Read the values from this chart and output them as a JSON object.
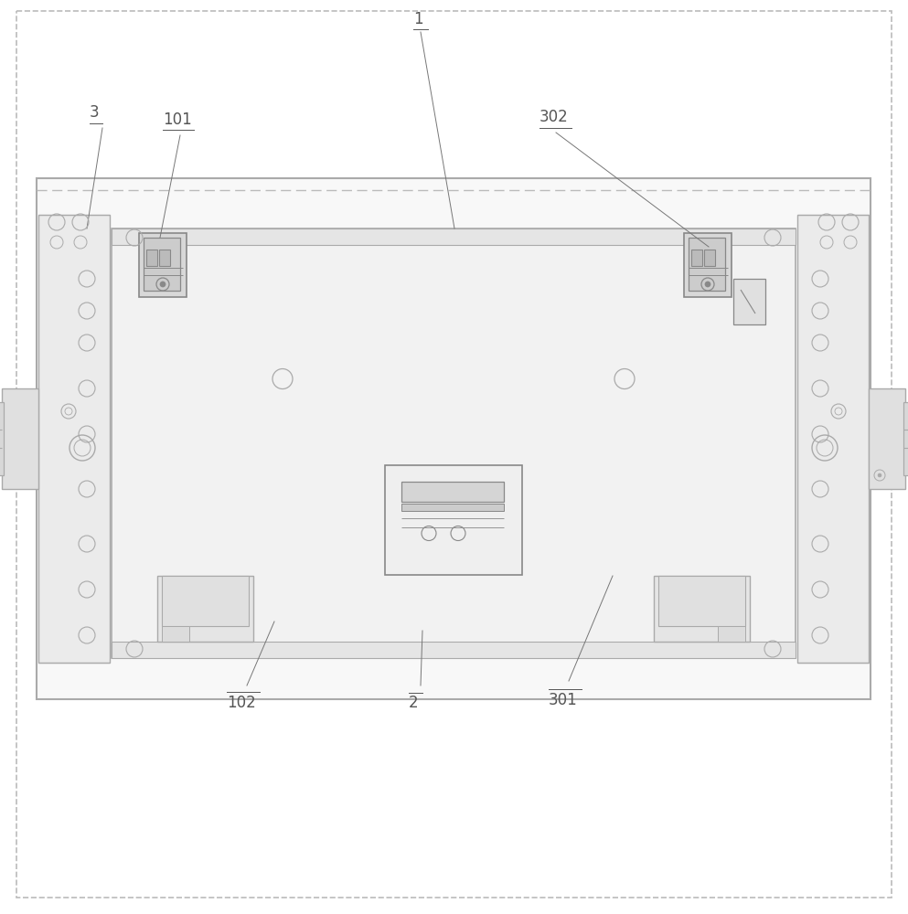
{
  "bg_color": "#ffffff",
  "lc": "#aaaaaa",
  "dc": "#888888",
  "dsh": "#bbbbbb",
  "tc": "#555555",
  "fig_width": 9.93,
  "fig_height": 10.0,
  "dpi": 100
}
